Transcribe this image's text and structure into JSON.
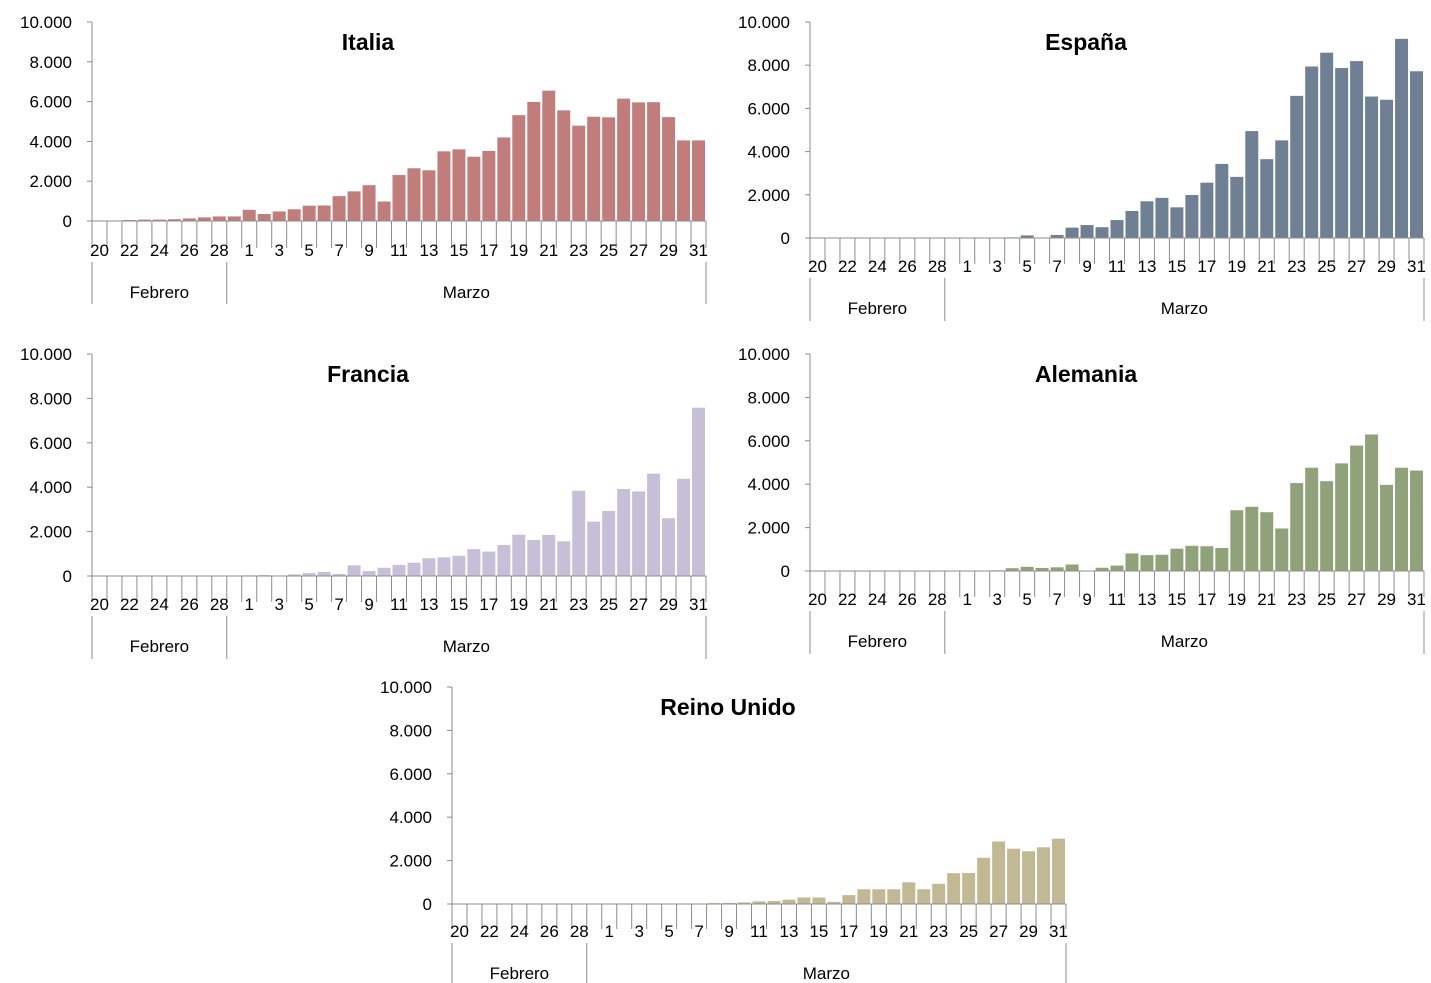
{
  "chart_data": [
    {
      "type": "bar",
      "title": "Italia",
      "color": "#c07d7b",
      "ylim": [
        0,
        10000
      ],
      "yticks": [
        "0",
        "2.000",
        "4.000",
        "6.000",
        "8.000",
        "10.000"
      ],
      "ytick_values": [
        0,
        2000,
        4000,
        6000,
        8000,
        10000
      ],
      "categories": [
        "20",
        "21",
        "22",
        "23",
        "24",
        "25",
        "26",
        "27",
        "28",
        "29",
        "1",
        "2",
        "3",
        "4",
        "5",
        "6",
        "7",
        "8",
        "9",
        "10",
        "11",
        "12",
        "13",
        "14",
        "15",
        "16",
        "17",
        "18",
        "19",
        "20",
        "21",
        "22",
        "23",
        "24",
        "25",
        "26",
        "27",
        "28",
        "29",
        "30",
        "31"
      ],
      "xtick_labels": [
        "20",
        "22",
        "24",
        "26",
        "28",
        "1",
        "3",
        "5",
        "7",
        "9",
        "11",
        "13",
        "15",
        "17",
        "19",
        "21",
        "23",
        "25",
        "27",
        "29",
        "31"
      ],
      "months": [
        "Febrero",
        "Marzo"
      ],
      "values": [
        0,
        20,
        50,
        70,
        70,
        90,
        130,
        180,
        230,
        230,
        560,
        350,
        480,
        590,
        770,
        780,
        1250,
        1490,
        1800,
        980,
        2310,
        2650,
        2550,
        3500,
        3600,
        3230,
        3520,
        4200,
        5320,
        5980,
        6550,
        5560,
        4790,
        5240,
        5210,
        6150,
        5960,
        5970,
        5220,
        4050,
        4050
      ]
    },
    {
      "type": "bar",
      "title": "España",
      "color": "#6f8095",
      "ylim": [
        0,
        10000
      ],
      "yticks": [
        "0",
        "2.000",
        "4.000",
        "6.000",
        "8.000",
        "10.000"
      ],
      "ytick_values": [
        0,
        2000,
        4000,
        6000,
        8000,
        10000
      ],
      "categories": [
        "20",
        "21",
        "22",
        "23",
        "24",
        "25",
        "26",
        "27",
        "28",
        "29",
        "1",
        "2",
        "3",
        "4",
        "5",
        "6",
        "7",
        "8",
        "9",
        "10",
        "11",
        "12",
        "13",
        "14",
        "15",
        "16",
        "17",
        "18",
        "19",
        "20",
        "21",
        "22",
        "23",
        "24",
        "25",
        "26",
        "27",
        "28",
        "29",
        "30",
        "31"
      ],
      "xtick_labels": [
        "20",
        "22",
        "24",
        "26",
        "28",
        "1",
        "3",
        "5",
        "7",
        "9",
        "11",
        "13",
        "15",
        "17",
        "19",
        "21",
        "23",
        "25",
        "27",
        "29",
        "31"
      ],
      "months": [
        "Febrero",
        "Marzo"
      ],
      "values": [
        0,
        0,
        0,
        0,
        0,
        0,
        0,
        0,
        0,
        0,
        20,
        10,
        20,
        30,
        120,
        20,
        140,
        480,
        600,
        500,
        830,
        1250,
        1700,
        1860,
        1420,
        1990,
        2560,
        3430,
        2830,
        4950,
        3650,
        4520,
        6580,
        7940,
        8580,
        7870,
        8190,
        6550,
        6400,
        9220,
        7720
      ]
    },
    {
      "type": "bar",
      "title": "Francia",
      "color": "#c7bed8",
      "ylim": [
        0,
        10000
      ],
      "yticks": [
        "0",
        "2.000",
        "4.000",
        "6.000",
        "8.000",
        "10.000"
      ],
      "ytick_values": [
        0,
        2000,
        4000,
        6000,
        8000,
        10000
      ],
      "categories": [
        "20",
        "21",
        "22",
        "23",
        "24",
        "25",
        "26",
        "27",
        "28",
        "29",
        "1",
        "2",
        "3",
        "4",
        "5",
        "6",
        "7",
        "8",
        "9",
        "10",
        "11",
        "12",
        "13",
        "14",
        "15",
        "16",
        "17",
        "18",
        "19",
        "20",
        "21",
        "22",
        "23",
        "24",
        "25",
        "26",
        "27",
        "28",
        "29",
        "30",
        "31"
      ],
      "xtick_labels": [
        "20",
        "22",
        "24",
        "26",
        "28",
        "1",
        "3",
        "5",
        "7",
        "9",
        "11",
        "13",
        "15",
        "17",
        "19",
        "21",
        "23",
        "25",
        "27",
        "29",
        "31"
      ],
      "months": [
        "Febrero",
        "Marzo"
      ],
      "values": [
        0,
        0,
        0,
        0,
        0,
        0,
        0,
        0,
        0,
        20,
        30,
        40,
        20,
        70,
        130,
        180,
        90,
        480,
        220,
        370,
        500,
        600,
        800,
        840,
        910,
        1210,
        1100,
        1400,
        1860,
        1620,
        1850,
        1560,
        3840,
        2450,
        2930,
        3920,
        3810,
        4610,
        2600,
        4380,
        7580
      ]
    },
    {
      "type": "bar",
      "title": "Alemania",
      "color": "#8fa27a",
      "ylim": [
        0,
        10000
      ],
      "yticks": [
        "0",
        "2.000",
        "4.000",
        "6.000",
        "8.000",
        "10.000"
      ],
      "ytick_values": [
        0,
        2000,
        4000,
        6000,
        8000,
        10000
      ],
      "categories": [
        "20",
        "21",
        "22",
        "23",
        "24",
        "25",
        "26",
        "27",
        "28",
        "29",
        "1",
        "2",
        "3",
        "4",
        "5",
        "6",
        "7",
        "8",
        "9",
        "10",
        "11",
        "12",
        "13",
        "14",
        "15",
        "16",
        "17",
        "18",
        "19",
        "20",
        "21",
        "22",
        "23",
        "24",
        "25",
        "26",
        "27",
        "28",
        "29",
        "30",
        "31"
      ],
      "xtick_labels": [
        "20",
        "22",
        "24",
        "26",
        "28",
        "1",
        "3",
        "5",
        "7",
        "9",
        "11",
        "13",
        "15",
        "17",
        "19",
        "21",
        "23",
        "25",
        "27",
        "29",
        "31"
      ],
      "months": [
        "Febrero",
        "Marzo"
      ],
      "values": [
        0,
        0,
        0,
        0,
        0,
        0,
        0,
        0,
        0,
        0,
        10,
        20,
        30,
        130,
        190,
        140,
        170,
        300,
        0,
        150,
        250,
        810,
        730,
        750,
        1030,
        1160,
        1140,
        1060,
        2800,
        2960,
        2710,
        1960,
        4050,
        4760,
        4140,
        4960,
        5780,
        6290,
        3970,
        4760,
        4630
      ]
    },
    {
      "type": "bar",
      "title": "Reino Unido",
      "color": "#c0b994",
      "ylim": [
        0,
        10000
      ],
      "yticks": [
        "0",
        "2.000",
        "4.000",
        "6.000",
        "8.000",
        "10.000"
      ],
      "ytick_values": [
        0,
        2000,
        4000,
        6000,
        8000,
        10000
      ],
      "categories": [
        "20",
        "21",
        "22",
        "23",
        "24",
        "25",
        "26",
        "27",
        "28",
        "29",
        "1",
        "2",
        "3",
        "4",
        "5",
        "6",
        "7",
        "8",
        "9",
        "10",
        "11",
        "12",
        "13",
        "14",
        "15",
        "16",
        "17",
        "18",
        "19",
        "20",
        "21",
        "22",
        "23",
        "24",
        "25",
        "26",
        "27",
        "28",
        "29",
        "30",
        "31"
      ],
      "xtick_labels": [
        "20",
        "22",
        "24",
        "26",
        "28",
        "1",
        "3",
        "5",
        "7",
        "9",
        "11",
        "13",
        "15",
        "17",
        "19",
        "21",
        "23",
        "25",
        "27",
        "29",
        "31"
      ],
      "months": [
        "Febrero",
        "Marzo"
      ],
      "values": [
        0,
        0,
        0,
        0,
        0,
        0,
        0,
        0,
        0,
        0,
        0,
        0,
        10,
        10,
        10,
        20,
        20,
        40,
        50,
        70,
        120,
        140,
        200,
        300,
        300,
        100,
        410,
        680,
        680,
        680,
        1000,
        680,
        930,
        1420,
        1430,
        2130,
        2880,
        2550,
        2430,
        2610,
        3010
      ]
    }
  ]
}
